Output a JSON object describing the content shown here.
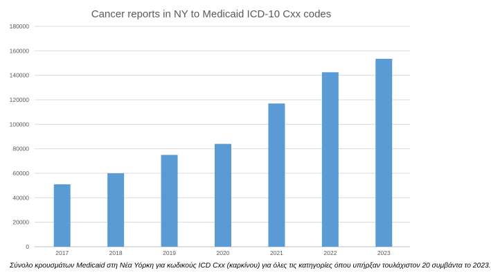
{
  "chart_data": {
    "type": "bar",
    "title": "Cancer reports in NY to Medicaid ICD-10 Cxx codes",
    "categories": [
      "2017",
      "2018",
      "2019",
      "2020",
      "2021",
      "2022",
      "2023"
    ],
    "values": [
      51000,
      60000,
      75000,
      84000,
      117000,
      142500,
      153500
    ],
    "ylim": [
      0,
      180000
    ],
    "yticks": [
      "0",
      "20000",
      "40000",
      "60000",
      "80000",
      "100000",
      "120000",
      "140000",
      "160000",
      "180000"
    ],
    "grid": true,
    "legend": "none",
    "bar_color": "#5b9bd5"
  },
  "caption": "Σύνολο κρουσμάτων Medicaid στη Νέα Υόρκη για κωδικούς ICD Cxx (καρκίνου) για όλες τις κατηγορίες όπου υπήρξαν τουλάχιστον 20 συμβάντα το 2023."
}
